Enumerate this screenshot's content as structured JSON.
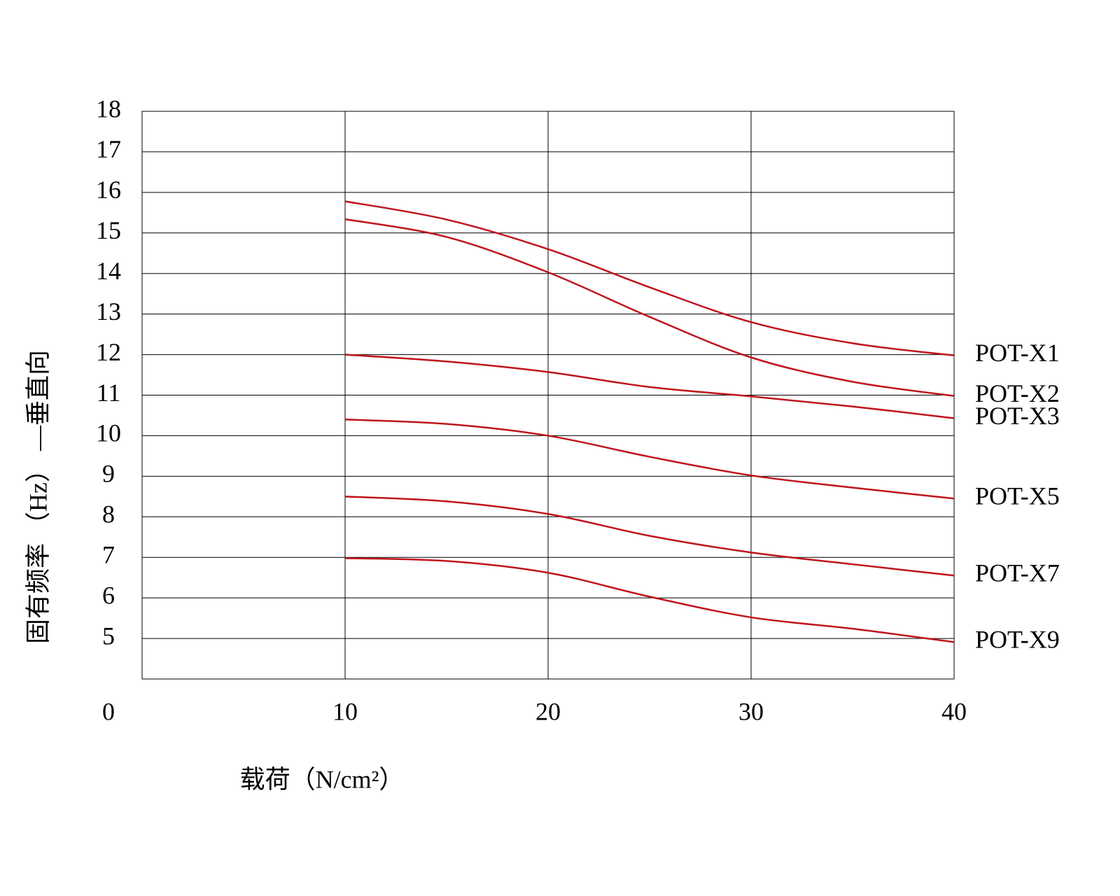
{
  "chart_data": {
    "type": "line",
    "x_label": "载荷（N/cm²）",
    "y_label": "固有频率 （Hz） —垂直向",
    "xlim": [
      0,
      40
    ],
    "xticks": [
      0,
      10,
      20,
      30,
      40
    ],
    "ylim": [
      4,
      18
    ],
    "yticks": [
      5,
      6,
      7,
      8,
      9,
      10,
      11,
      12,
      13,
      14,
      15,
      16,
      17,
      18
    ],
    "grid": true,
    "x": [
      10,
      15,
      20,
      25,
      30,
      35,
      40
    ],
    "series": [
      {
        "name": "POT-X1",
        "color": "#c0141c",
        "values": [
          15.78,
          15.33,
          14.6,
          13.66,
          12.8,
          12.28,
          11.98
        ]
      },
      {
        "name": "POT-X2",
        "color": "#c0141c",
        "values": [
          15.34,
          14.9,
          14.03,
          12.93,
          11.93,
          11.33,
          10.98
        ]
      },
      {
        "name": "POT-X3",
        "color": "#c0141c",
        "values": [
          12.0,
          11.83,
          11.57,
          11.2,
          10.97,
          10.72,
          10.43
        ]
      },
      {
        "name": "POT-X5",
        "color": "#c0141c",
        "values": [
          10.4,
          10.29,
          10.0,
          9.48,
          9.02,
          8.72,
          8.45
        ]
      },
      {
        "name": "POT-X7",
        "color": "#c0141c",
        "values": [
          8.5,
          8.38,
          8.07,
          7.53,
          7.12,
          6.83,
          6.55
        ]
      },
      {
        "name": "POT-X9",
        "color": "#c0141c",
        "values": [
          6.98,
          6.91,
          6.62,
          6.03,
          5.52,
          5.24,
          4.91
        ]
      }
    ]
  }
}
